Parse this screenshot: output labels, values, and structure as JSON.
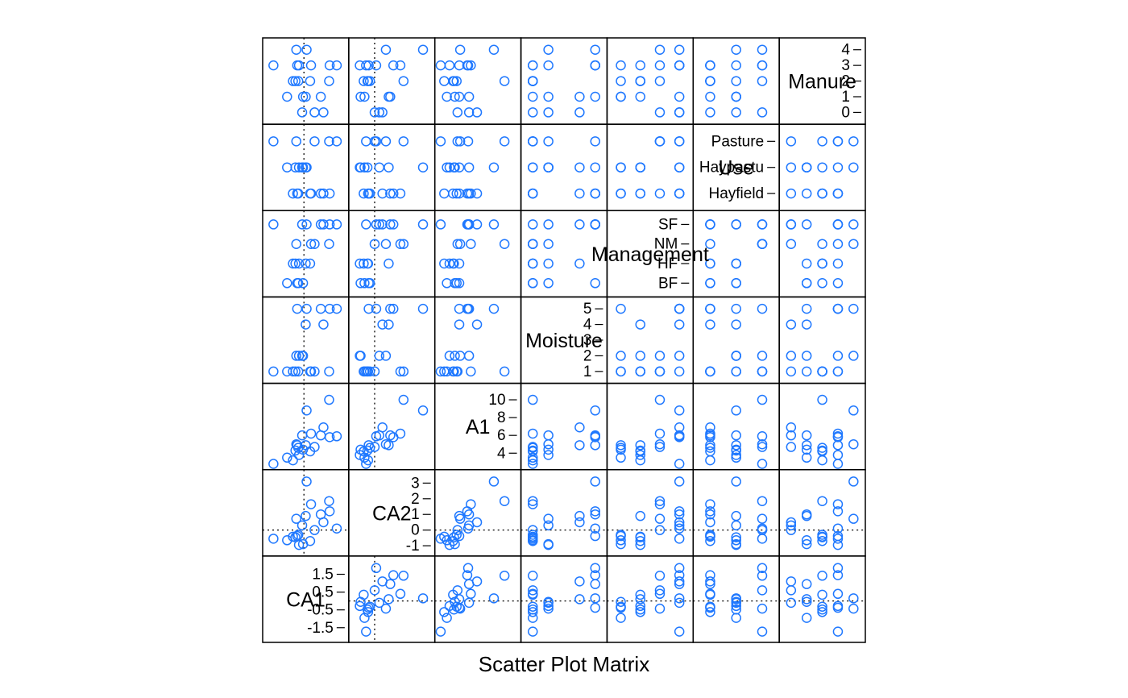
{
  "chart_data": {
    "type": "scatter-matrix",
    "xlabel": "Scatter Plot Matrix",
    "point_color": "#1f78ff",
    "variables": [
      {
        "name": "CA1",
        "kind": "numeric",
        "lim": [
          -2.1,
          2.3
        ],
        "ticks": [
          -1.5,
          -0.5,
          0.5,
          1.5
        ],
        "ref": 0
      },
      {
        "name": "CA2",
        "kind": "numeric",
        "lim": [
          -1.4,
          3.6
        ],
        "ticks": [
          -1,
          0,
          1,
          2,
          3
        ],
        "ref": 0
      },
      {
        "name": "A1",
        "kind": "numeric",
        "lim": [
          2.6,
          11.4
        ],
        "ticks": [
          4,
          6,
          8,
          10
        ],
        "ref": null
      },
      {
        "name": "Moisture",
        "kind": "numeric",
        "lim": [
          0.5,
          5.5
        ],
        "ticks": [
          1,
          2,
          3,
          4,
          5
        ],
        "ref": null
      },
      {
        "name": "Management",
        "kind": "factor",
        "lim": [
          0.5,
          4.5
        ],
        "ticks": [
          1,
          2,
          3,
          4
        ],
        "levels": [
          "BF",
          "HF",
          "NM",
          "SF"
        ],
        "ref": null
      },
      {
        "name": "Use",
        "kind": "factor",
        "lim": [
          0.5,
          3.5
        ],
        "ticks": [
          1,
          2,
          3
        ],
        "levels": [
          "Hayfield",
          "Haypastu",
          "Pasture"
        ],
        "ref": null
      },
      {
        "name": "Manure",
        "kind": "numeric",
        "lim": [
          -0.5,
          4.5
        ],
        "ticks": [
          0,
          1,
          2,
          3,
          4
        ],
        "ref": null
      }
    ],
    "rows": [
      {
        "CA1": -1.72,
        "CA2": -0.55,
        "A1": 2.8,
        "Moisture": 1,
        "Management": 4,
        "Use": 3,
        "Manure": 3
      },
      {
        "CA1": -0.95,
        "CA2": -0.65,
        "A1": 3.5,
        "Moisture": 1,
        "Management": 1,
        "Use": 2,
        "Manure": 1
      },
      {
        "CA1": -0.62,
        "CA2": -0.42,
        "A1": 3.2,
        "Moisture": 1,
        "Management": 2,
        "Use": 1,
        "Manure": 2
      },
      {
        "CA1": -0.48,
        "CA2": -0.46,
        "A1": 4.3,
        "Moisture": 1,
        "Management": 2,
        "Use": 2,
        "Manure": 2
      },
      {
        "CA1": -0.43,
        "CA2": 0.72,
        "A1": 5.0,
        "Moisture": 2,
        "Management": 3,
        "Use": 3,
        "Manure": 4
      },
      {
        "CA1": -0.32,
        "CA2": -0.3,
        "A1": 4.6,
        "Moisture": 1,
        "Management": 1,
        "Use": 1,
        "Manure": 2
      },
      {
        "CA1": -0.28,
        "CA2": -0.95,
        "A1": 3.8,
        "Moisture": 2,
        "Management": 2,
        "Use": 2,
        "Manure": 3
      },
      {
        "CA1": -0.38,
        "CA2": -0.38,
        "A1": 4.9,
        "Moisture": 5,
        "Management": 1,
        "Use": 1,
        "Manure": 3
      },
      {
        "CA1": 1.85,
        "CA2": 0.1,
        "A1": 5.9,
        "Moisture": 5,
        "Management": 4,
        "Use": 3,
        "Manure": 3
      },
      {
        "CA1": 0.4,
        "CA2": 1.65,
        "A1": 6.2,
        "Moisture": 1,
        "Management": 3,
        "Use": 1,
        "Manure": 3
      },
      {
        "CA1": 1.42,
        "CA2": 1.85,
        "A1": 10.0,
        "Moisture": 1,
        "Management": 3,
        "Use": 3,
        "Manure": 2
      },
      {
        "CA1": 1.1,
        "CA2": 0.5,
        "A1": 6.9,
        "Moisture": 4,
        "Management": 4,
        "Use": 1,
        "Manure": 0
      },
      {
        "CA1": 0.95,
        "CA2": 1.0,
        "A1": 6.0,
        "Moisture": 5,
        "Management": 4,
        "Use": 1,
        "Manure": 1
      },
      {
        "CA1": 1.45,
        "CA2": 1.2,
        "A1": 5.8,
        "Moisture": 5,
        "Management": 4,
        "Use": 1,
        "Manure": 3
      },
      {
        "CA1": 0.1,
        "CA2": 0.9,
        "A1": 4.9,
        "Moisture": 4,
        "Management": 2,
        "Use": 2,
        "Manure": 1
      },
      {
        "CA1": 0.15,
        "CA2": 3.1,
        "A1": 8.8,
        "Moisture": 5,
        "Management": 4,
        "Use": 2,
        "Manure": 4
      },
      {
        "CA1": -0.05,
        "CA2": -0.9,
        "A1": 4.4,
        "Moisture": 2,
        "Management": 1,
        "Use": 2,
        "Manure": 1
      },
      {
        "CA1": 0.6,
        "CA2": 0.0,
        "A1": 4.7,
        "Moisture": 1,
        "Management": 3,
        "Use": 3,
        "Manure": 0
      },
      {
        "CA1": -0.1,
        "CA2": 0.3,
        "A1": 6.0,
        "Moisture": 2,
        "Management": 4,
        "Use": 2,
        "Manure": 0
      },
      {
        "CA1": 0.35,
        "CA2": -0.7,
        "A1": 4.2,
        "Moisture": 1,
        "Management": 2,
        "Use": 1,
        "Manure": 2
      }
    ]
  }
}
